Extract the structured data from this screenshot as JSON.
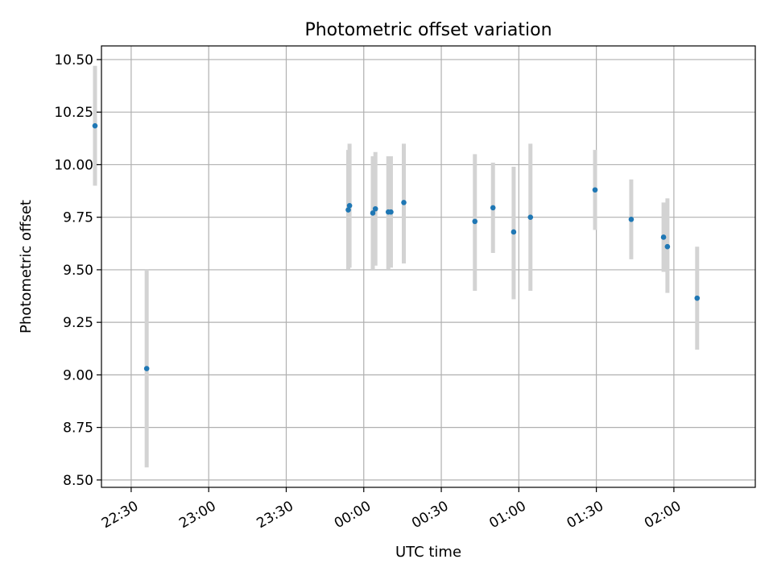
{
  "chart_data": {
    "type": "scatter",
    "title": "Photometric offset variation",
    "xlabel": "UTC time",
    "ylabel": "Photometric offset",
    "x_unit": "minutes",
    "xlim": [
      -101.5,
      151.5
    ],
    "ylim": [
      8.465,
      10.565
    ],
    "grid": true,
    "xticks": [
      {
        "value": -90,
        "label": "22:30"
      },
      {
        "value": -60,
        "label": "23:00"
      },
      {
        "value": -30,
        "label": "23:30"
      },
      {
        "value": 0,
        "label": "00:00"
      },
      {
        "value": 30,
        "label": "00:30"
      },
      {
        "value": 60,
        "label": "01:00"
      },
      {
        "value": 90,
        "label": "01:30"
      },
      {
        "value": 120,
        "label": "02:00"
      }
    ],
    "yticks": [
      {
        "value": 8.5,
        "label": "8.50"
      },
      {
        "value": 8.75,
        "label": "8.75"
      },
      {
        "value": 9.0,
        "label": "9.00"
      },
      {
        "value": 9.25,
        "label": "9.25"
      },
      {
        "value": 9.5,
        "label": "9.50"
      },
      {
        "value": 9.75,
        "label": "9.75"
      },
      {
        "value": 10.0,
        "label": "10.00"
      },
      {
        "value": 10.25,
        "label": "10.25"
      },
      {
        "value": 10.5,
        "label": "10.50"
      }
    ],
    "marker_color": "#1f77b4",
    "errorbar_color": "#d3d3d3",
    "points": [
      {
        "time": "22:16",
        "x": -104,
        "y": 10.185,
        "ylow": 9.9,
        "yhigh": 10.47
      },
      {
        "time": "22:36",
        "x": -84,
        "y": 9.03,
        "ylow": 8.56,
        "yhigh": 9.5
      },
      {
        "time": "23:54",
        "x": -6,
        "y": 9.785,
        "ylow": 9.5,
        "yhigh": 10.07
      },
      {
        "time": "23:54",
        "x": -5.5,
        "y": 9.805,
        "ylow": 9.51,
        "yhigh": 10.1
      },
      {
        "time": "00:03",
        "x": 3.5,
        "y": 9.77,
        "ylow": 9.5,
        "yhigh": 10.04
      },
      {
        "time": "00:04",
        "x": 4.5,
        "y": 9.79,
        "ylow": 9.52,
        "yhigh": 10.06
      },
      {
        "time": "00:09",
        "x": 9.5,
        "y": 9.775,
        "ylow": 9.5,
        "yhigh": 10.04
      },
      {
        "time": "00:11",
        "x": 10.5,
        "y": 9.775,
        "ylow": 9.51,
        "yhigh": 10.04
      },
      {
        "time": "00:15",
        "x": 15.5,
        "y": 9.82,
        "ylow": 9.53,
        "yhigh": 10.1
      },
      {
        "time": "00:43",
        "x": 43,
        "y": 9.73,
        "ylow": 9.4,
        "yhigh": 10.05
      },
      {
        "time": "00:50",
        "x": 50,
        "y": 9.795,
        "ylow": 9.58,
        "yhigh": 10.01
      },
      {
        "time": "00:58",
        "x": 58,
        "y": 9.68,
        "ylow": 9.36,
        "yhigh": 9.99
      },
      {
        "time": "01:04",
        "x": 64.5,
        "y": 9.75,
        "ylow": 9.4,
        "yhigh": 10.1
      },
      {
        "time": "01:29",
        "x": 89.5,
        "y": 9.88,
        "ylow": 9.69,
        "yhigh": 10.07
      },
      {
        "time": "01:43",
        "x": 103.5,
        "y": 9.74,
        "ylow": 9.55,
        "yhigh": 9.93
      },
      {
        "time": "01:56",
        "x": 116,
        "y": 9.655,
        "ylow": 9.49,
        "yhigh": 9.82
      },
      {
        "time": "01:57",
        "x": 117.5,
        "y": 9.61,
        "ylow": 9.39,
        "yhigh": 9.84
      },
      {
        "time": "02:09",
        "x": 129,
        "y": 9.365,
        "ylow": 9.12,
        "yhigh": 9.61
      }
    ]
  }
}
